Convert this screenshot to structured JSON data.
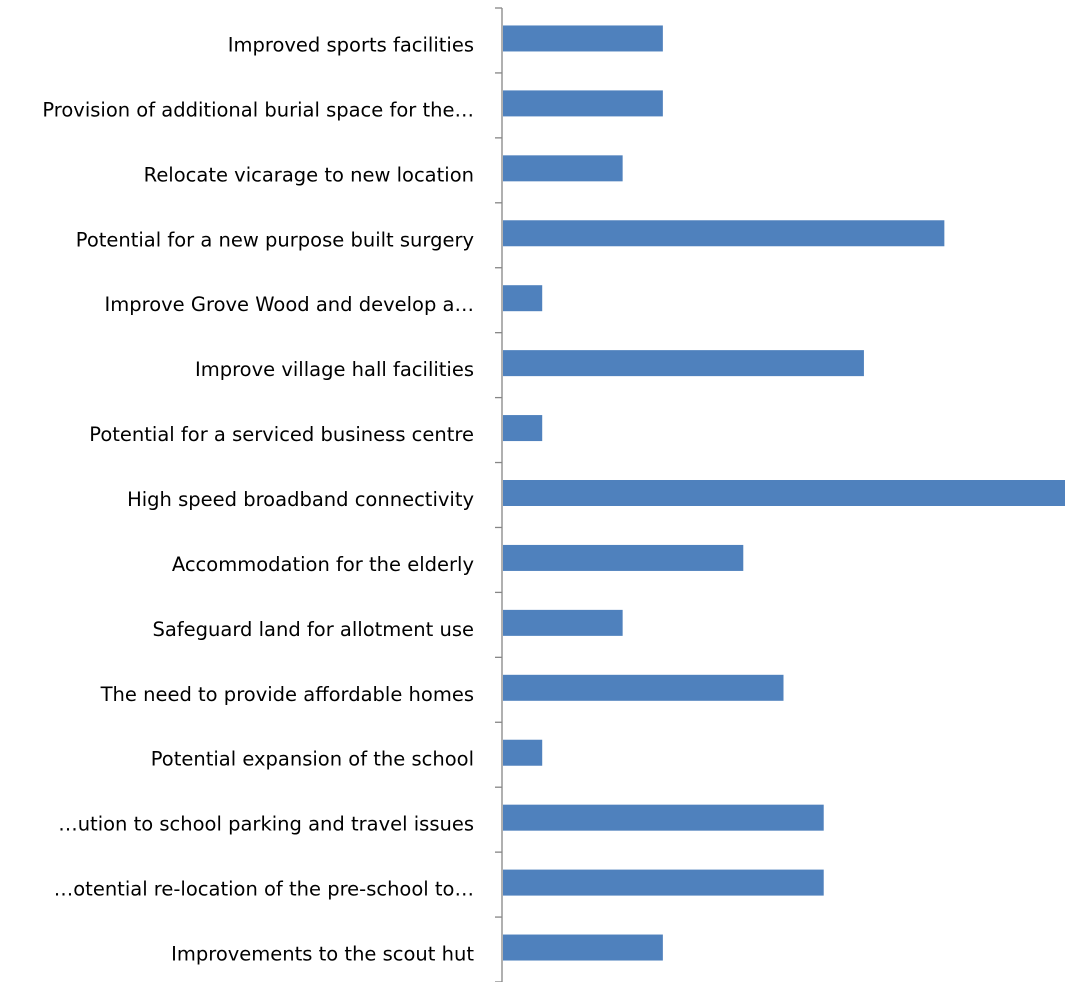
{
  "chart_data": {
    "type": "bar",
    "orientation": "horizontal",
    "title": "",
    "xlabel": "",
    "ylabel": "",
    "legend": "none",
    "grid": false,
    "xlim": [
      0,
      14
    ],
    "categories": [
      "Improved sports facilities",
      "Provision of additional burial space for the…",
      "Relocate vicarage to new location",
      "Potential for a new purpose built surgery",
      "Improve Grove Wood and develop a…",
      "Improve village hall facilities",
      "Potential for a serviced business centre",
      "High speed broadband connectivity",
      "Accommodation for the elderly",
      "Safeguard land for allotment use",
      "The need to provide affordable homes",
      "Potential expansion of the school",
      "…ution to school parking and travel issues",
      "…otential re-location of the pre-school to…",
      "Improvements to the scout hut"
    ],
    "values": [
      4,
      4,
      3,
      11,
      1,
      9,
      1,
      14,
      6,
      3,
      7,
      1,
      8,
      8,
      4
    ],
    "colors": {
      "bar": "#4f81bd",
      "axis": "#868686"
    }
  }
}
